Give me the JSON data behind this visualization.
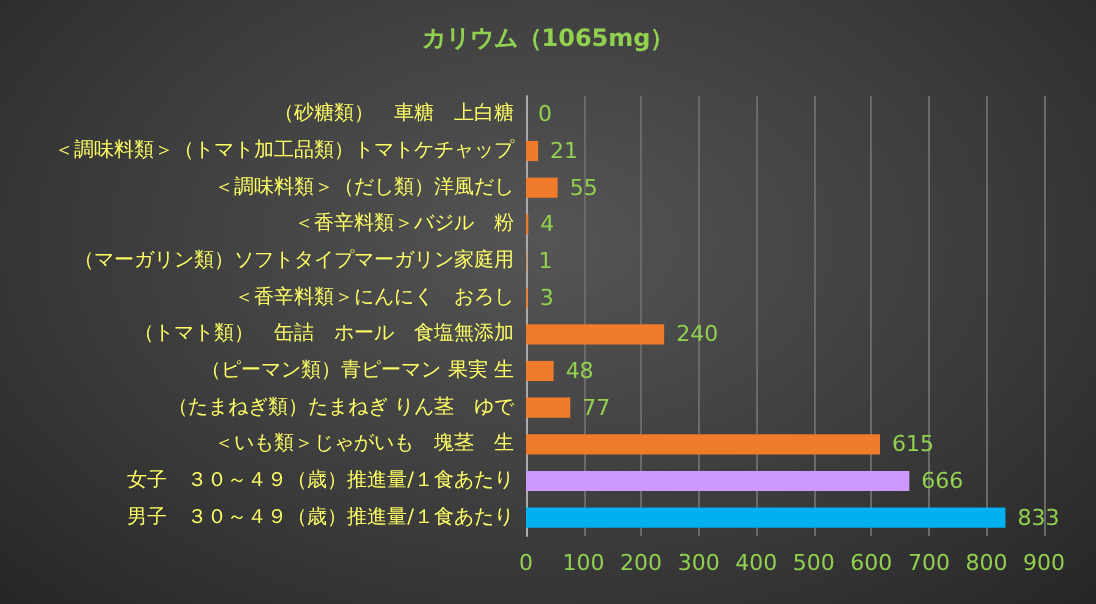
{
  "chart_data": {
    "type": "bar",
    "orientation": "horizontal",
    "title": "カリウム（1065mg）",
    "categories": [
      "（砂糖類）　車糖　上白糖",
      "＜調味料類＞（トマト加工品類）トマトケチャップ",
      "＜調味料類＞（だし類）洋風だし",
      "＜香辛料類＞バジル　粉",
      "（マーガリン類）ソフトタイプマーガリン家庭用",
      "＜香辛料類＞にんにく　おろし",
      "（トマト類）　缶詰　ホール　食塩無添加",
      "（ピーマン類）青ピーマン 果実 生",
      "（たまねぎ類）たまねぎ りん茎　ゆで",
      "＜いも類＞じゃがいも　塊茎　生",
      "女子　３０～４９（歳）推進量/１食あたり",
      "男子　３０～４９（歳）推進量/１食あたり"
    ],
    "values": [
      0,
      21,
      55,
      4,
      1,
      3,
      240,
      48,
      77,
      615,
      666,
      833
    ],
    "colors": [
      "#f07b2a",
      "#f07b2a",
      "#f07b2a",
      "#f07b2a",
      "#f07b2a",
      "#f07b2a",
      "#f07b2a",
      "#f07b2a",
      "#f07b2a",
      "#f07b2a",
      "#cc99ff",
      "#00b0f0"
    ],
    "xlim": [
      0,
      900
    ],
    "xticks": [
      0,
      100,
      200,
      300,
      400,
      500,
      600,
      700,
      800,
      900
    ],
    "grid": "x",
    "data_labels": true
  }
}
